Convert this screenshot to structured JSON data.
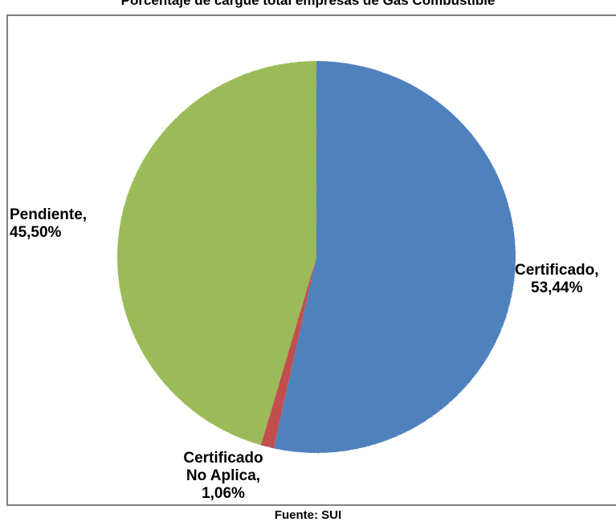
{
  "chart_data": {
    "type": "pie",
    "title": "Porcentaje de cargue total empresas de Gas Combustible",
    "slices": [
      {
        "name": "Certificado",
        "value": 53.44,
        "label_lines": [
          "Certificado,",
          "53,44%"
        ],
        "color": "#4f81bd"
      },
      {
        "name": "Certificado No Aplica",
        "value": 1.06,
        "label_lines": [
          "Certificado",
          "No Aplica,",
          "1,06%"
        ],
        "color": "#c0504d"
      },
      {
        "name": "Pendiente",
        "value": 45.5,
        "label_lines": [
          "Pendiente,",
          "45,50%"
        ],
        "color": "#9bbb59"
      }
    ],
    "start_angle_deg": 0,
    "direction": "clockwise"
  },
  "source_note": "Fuente: SUI"
}
